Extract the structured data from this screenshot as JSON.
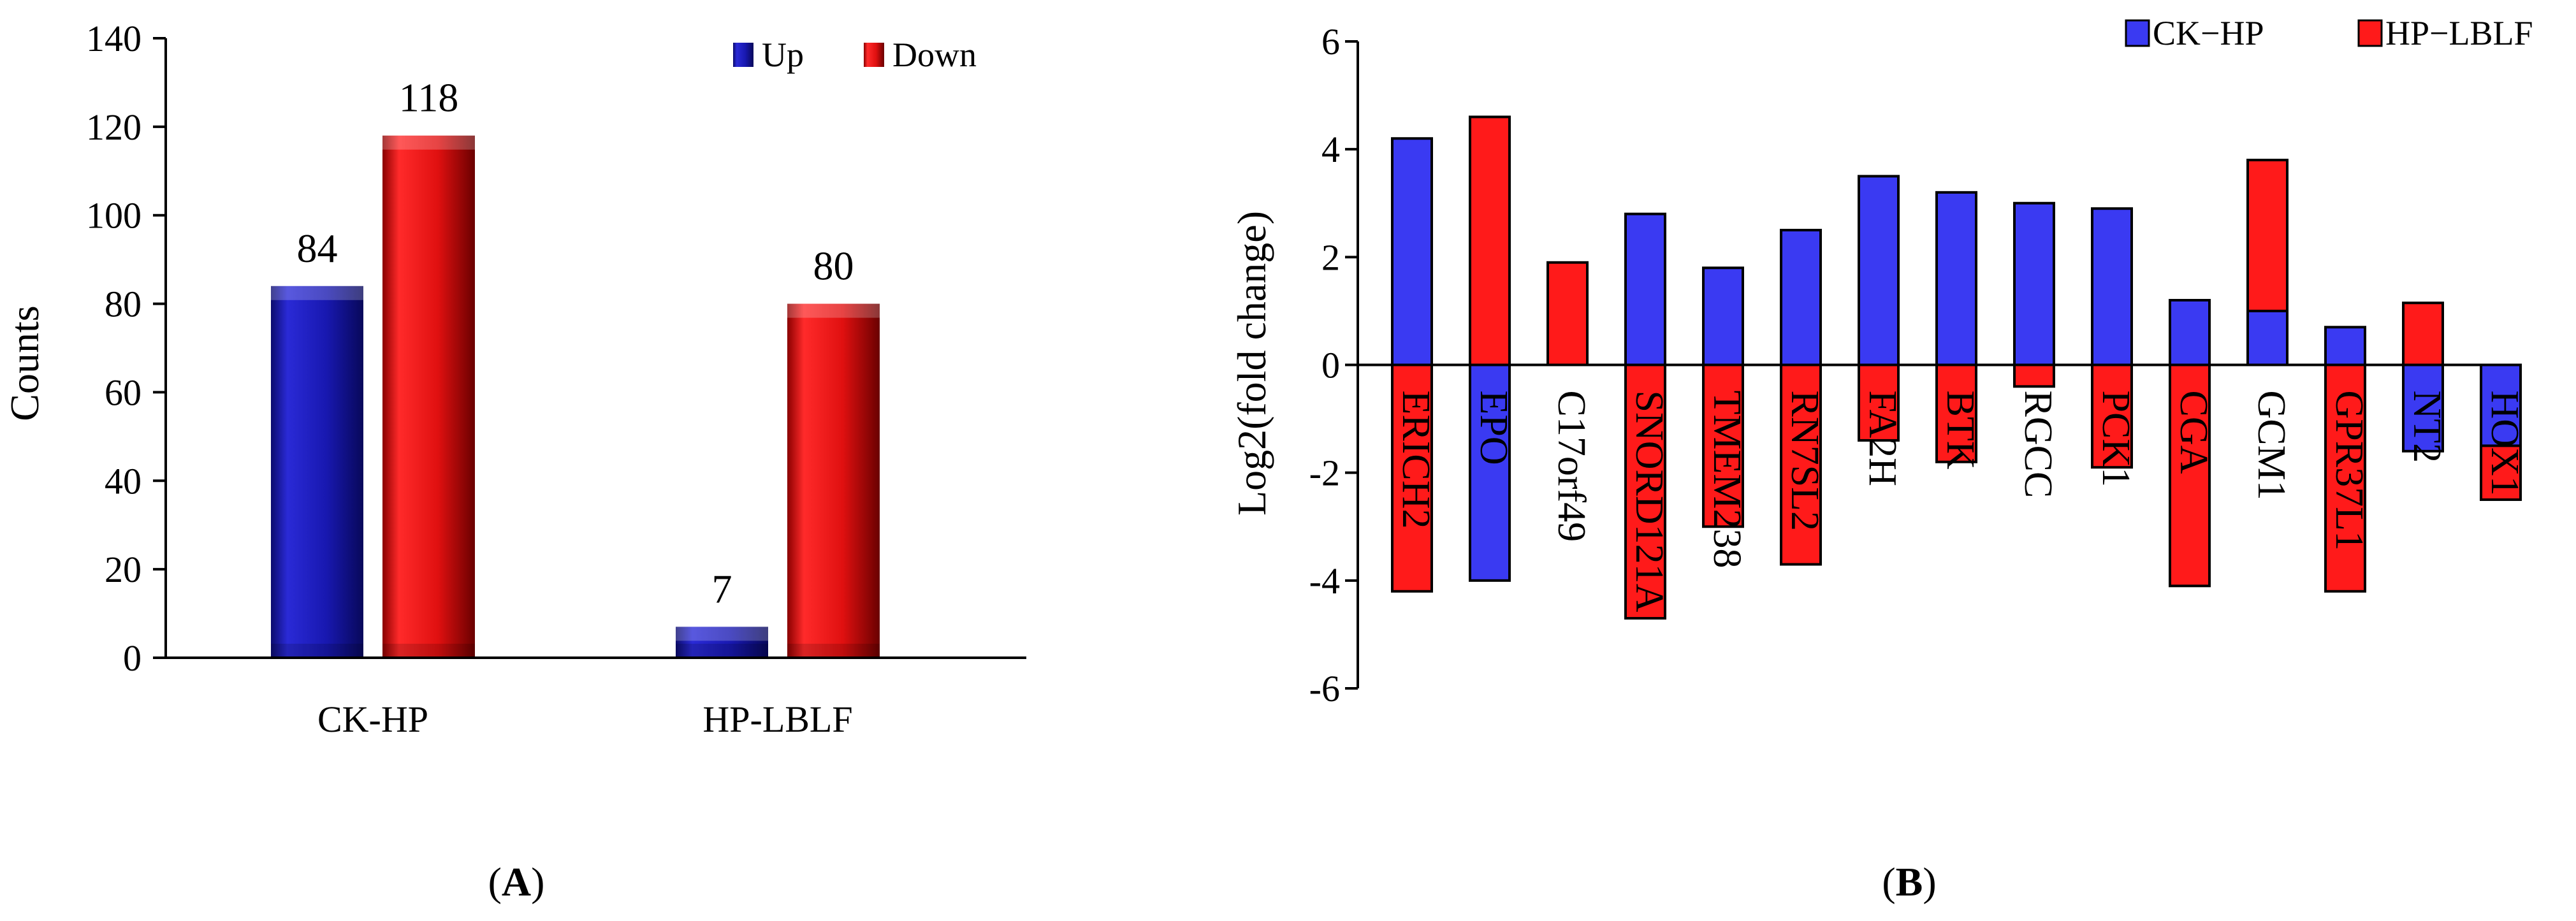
{
  "colors": {
    "up": "#1616aa",
    "down": "#e81010",
    "ck_hp": "#3a3af2",
    "hp_lblf": "#ff1a1a",
    "axis": "#000000"
  },
  "chart_data": [
    {
      "type": "bar",
      "panel_label": {
        "open": "(",
        "letter": "A",
        "close": ")"
      },
      "ylabel": "Counts",
      "xlabel": "",
      "ylim": [
        0,
        140
      ],
      "yticks": [
        0,
        20,
        40,
        60,
        80,
        100,
        120,
        140
      ],
      "grid": false,
      "legend": "top-right",
      "categories": [
        "CK-HP",
        "HP-LBLF"
      ],
      "series": [
        {
          "name": "Up",
          "values": [
            84,
            7
          ]
        },
        {
          "name": "Down",
          "values": [
            118,
            80
          ]
        }
      ]
    },
    {
      "type": "bar",
      "panel_label": {
        "open": "(",
        "letter": "B",
        "close": ")"
      },
      "ylabel": "Log2(fold change)",
      "xlabel": "",
      "ylim": [
        -6,
        6
      ],
      "yticks": [
        6,
        4,
        2,
        0,
        -2,
        -4,
        -6
      ],
      "grid": false,
      "legend": "top-right",
      "categories": [
        "ERICH2",
        "EPO",
        "C17orf49",
        "SNORD121A",
        "TMEM238",
        "RN7SL2",
        "FA2H",
        "BTK",
        "RGCC",
        "PCK1",
        "CGA",
        "GCM1",
        "GPR37L1",
        "NT2",
        "HOX1"
      ],
      "series": [
        {
          "name": "CK−HP",
          "values": [
            4.2,
            -4.0,
            0,
            2.8,
            1.8,
            2.5,
            3.5,
            3.2,
            3.0,
            2.9,
            1.2,
            1.0,
            0.7,
            -1.6,
            -1.5
          ]
        },
        {
          "name": "HP−LBLF",
          "values": [
            -4.2,
            4.6,
            1.9,
            -4.7,
            -3.0,
            -3.7,
            -1.4,
            -1.8,
            -0.4,
            -1.9,
            -4.1,
            3.8,
            -4.2,
            1.15,
            -2.5
          ]
        }
      ],
      "stack_order": [
        "HP−LBLF",
        "HP−LBLF",
        "CK−HP",
        "HP−LBLF",
        "HP−LBLF",
        "HP−LBLF",
        "HP−LBLF",
        "HP−LBLF",
        "HP−LBLF",
        "HP−LBLF",
        "HP−LBLF",
        "CK−HP",
        "HP−LBLF",
        "HP−LBLF",
        "CK−HP"
      ]
    }
  ]
}
